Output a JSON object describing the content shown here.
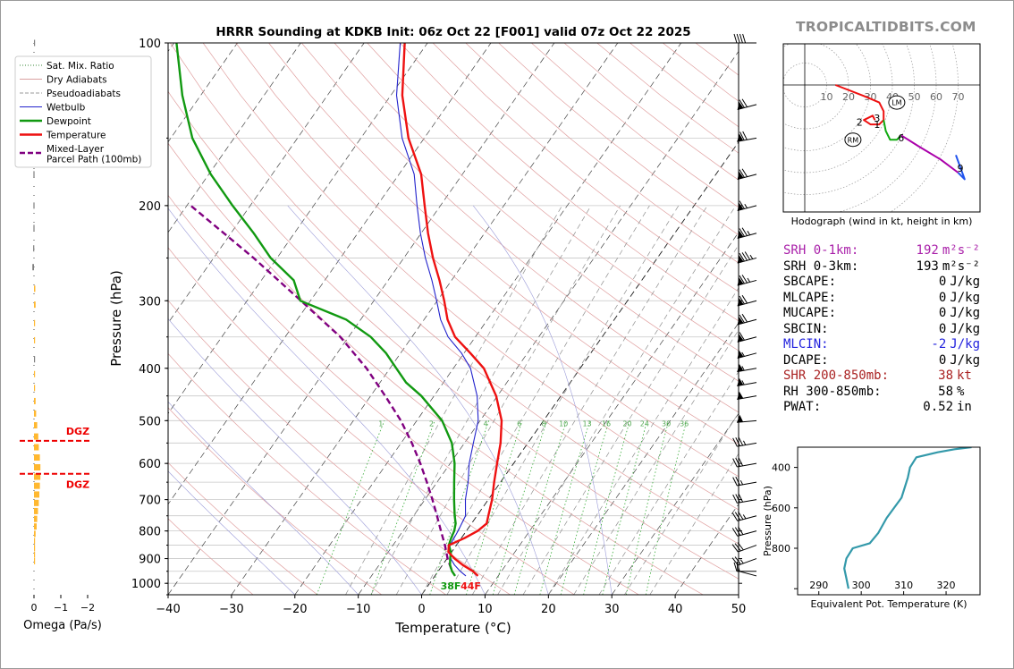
{
  "title": "HRRR Sounding at KDKB Init: 06z Oct 22 [F001] valid 07z Oct 22 2025",
  "brand": "TROPICALTIDBITS.COM",
  "legend": [
    {
      "label": "Sat. Mix. Ratio",
      "color": "#3a8a3a",
      "style": "dotted"
    },
    {
      "label": "Dry Adiabats",
      "color": "#d9a0a0",
      "style": "solid"
    },
    {
      "label": "Pseudoadiabats",
      "color": "#9a9a9a",
      "style": "dashed"
    },
    {
      "label": "Wetbulb",
      "color": "#2222cc",
      "style": "solid"
    },
    {
      "label": "Dewpoint",
      "color": "#119911",
      "style": "thick"
    },
    {
      "label": "Temperature",
      "color": "#ee1111",
      "style": "thick"
    },
    {
      "label": "Mixed-Layer\nParcel Path (100mb)",
      "color": "#800080",
      "style": "thickdash"
    }
  ],
  "chart_data": [
    {
      "type": "line",
      "name": "skewt",
      "xlabel": "Temperature (°C)",
      "ylabel": "Pressure (hPa)",
      "xlim": [
        -40,
        50
      ],
      "ylim": [
        1050,
        100
      ],
      "yscale": "log",
      "x_ticks": [
        -40,
        -30,
        -20,
        -10,
        0,
        10,
        20,
        30,
        40,
        50
      ],
      "x_tick_labels": [
        "−40",
        "−30",
        "−20",
        "−10",
        "0",
        "10",
        "20",
        "30",
        "40",
        "50"
      ],
      "y_ticks": [
        100,
        200,
        300,
        400,
        500,
        600,
        700,
        800,
        900,
        1000
      ],
      "y_tick_labels": [
        "100",
        "200",
        "300",
        "400",
        "500",
        "600",
        "700",
        "800",
        "900",
        "1000"
      ],
      "surface_labels": {
        "dewpoint": "38F",
        "temperature": "44F"
      },
      "mixing_ratio_labels": [
        "1",
        "2",
        "4",
        "6",
        "8",
        "10",
        "13",
        "16",
        "20",
        "24",
        "30",
        "36"
      ],
      "mixing_ratio_values": [
        1,
        2,
        4,
        6,
        8,
        10,
        13,
        16,
        20,
        24,
        30,
        36
      ],
      "colors": {
        "temperature": "#ee1111",
        "dewpoint": "#119911",
        "wetbulb": "#2222cc",
        "parcel": "#800080"
      },
      "series": [
        {
          "name": "Temperature",
          "p": [
            969,
            950,
            925,
            900,
            875,
            850,
            825,
            800,
            775,
            750,
            700,
            650,
            600,
            550,
            500,
            450,
            400,
            375,
            350,
            325,
            300,
            275,
            250,
            225,
            200,
            175,
            150,
            125,
            100
          ],
          "t": [
            6.8,
            5.5,
            3.2,
            1.2,
            -0.5,
            -1.2,
            0.5,
            1.8,
            2.4,
            1.8,
            0.6,
            -1.0,
            -2.6,
            -4.3,
            -6.6,
            -10.2,
            -15.2,
            -19.0,
            -23.2,
            -26.3,
            -28.9,
            -31.9,
            -35.4,
            -38.9,
            -42.5,
            -46.5,
            -52.5,
            -58.2,
            -63.6
          ]
        },
        {
          "name": "Dewpoint",
          "p": [
            969,
            950,
            925,
            900,
            875,
            850,
            825,
            800,
            775,
            750,
            700,
            650,
            600,
            550,
            500,
            450,
            425,
            400,
            375,
            350,
            325,
            300,
            275,
            250,
            225,
            200,
            175,
            150,
            125,
            100
          ],
          "t": [
            3.2,
            2.2,
            1.2,
            0.5,
            -0.1,
            -1.2,
            -1.6,
            -1.9,
            -2.5,
            -3.5,
            -5.4,
            -7.3,
            -9.3,
            -12.0,
            -16.0,
            -22.0,
            -25.9,
            -29.0,
            -32.3,
            -36.5,
            -42.3,
            -51.6,
            -54.9,
            -61.0,
            -66.4,
            -72.8,
            -79.7,
            -86.6,
            -92.9,
            -99.6
          ]
        },
        {
          "name": "Wetbulb",
          "p": [
            969,
            950,
            925,
            900,
            875,
            850,
            800,
            750,
            700,
            650,
            600,
            550,
            500,
            450,
            400,
            375,
            350,
            325,
            300,
            275,
            250,
            225,
            200,
            175,
            150,
            125,
            100
          ],
          "t": [
            4.9,
            3.5,
            1.9,
            0.6,
            -0.3,
            -1.0,
            -1.3,
            -1.8,
            -3.6,
            -5.1,
            -7.0,
            -8.6,
            -10.3,
            -13.2,
            -17.3,
            -20.4,
            -24.3,
            -27.4,
            -30.1,
            -33.1,
            -36.6,
            -40.1,
            -43.7,
            -47.6,
            -53.5,
            -59.1,
            -64.3
          ]
        },
        {
          "name": "Mixed-Layer Parcel Path (100mb)",
          "p": [
            940,
            900,
            850,
            800,
            750,
            700,
            650,
            600,
            550,
            500,
            450,
            400,
            350,
            300,
            250,
            200
          ],
          "t": [
            1.8,
            0.1,
            -1.8,
            -4.0,
            -6.3,
            -8.8,
            -11.6,
            -14.7,
            -18.3,
            -22.5,
            -27.7,
            -33.7,
            -41.3,
            -51.5,
            -63.7,
            -79.4
          ]
        }
      ]
    },
    {
      "type": "line",
      "name": "omega",
      "xlabel": "Omega (Pa/s)",
      "x_ticks": [
        0,
        -1,
        -2
      ],
      "x_tick_labels": [
        "0",
        "−1",
        "−2"
      ],
      "dgz_label": "DGZ",
      "dgz_levels": [
        545,
        627
      ],
      "bars": [
        {
          "p": 100,
          "v": 0.0
        },
        {
          "p": 115,
          "v": 0.0
        },
        {
          "p": 130,
          "v": 0.02
        },
        {
          "p": 145,
          "v": 0.05
        },
        {
          "p": 160,
          "v": -0.02
        },
        {
          "p": 175,
          "v": 0.02
        },
        {
          "p": 200,
          "v": 0.02
        },
        {
          "p": 220,
          "v": 0.02
        },
        {
          "p": 240,
          "v": 0.03
        },
        {
          "p": 260,
          "v": 0.06
        },
        {
          "p": 285,
          "v": -0.05
        },
        {
          "p": 305,
          "v": -0.06
        },
        {
          "p": 330,
          "v": -0.04
        },
        {
          "p": 355,
          "v": -0.02
        },
        {
          "p": 385,
          "v": 0.0
        },
        {
          "p": 410,
          "v": -0.02
        },
        {
          "p": 435,
          "v": -0.03
        },
        {
          "p": 460,
          "v": -0.06
        },
        {
          "p": 485,
          "v": -0.08
        },
        {
          "p": 510,
          "v": -0.12
        },
        {
          "p": 535,
          "v": -0.16
        },
        {
          "p": 560,
          "v": -0.18
        },
        {
          "p": 585,
          "v": -0.22
        },
        {
          "p": 610,
          "v": -0.24
        },
        {
          "p": 635,
          "v": -0.24
        },
        {
          "p": 660,
          "v": -0.22
        },
        {
          "p": 685,
          "v": -0.2
        },
        {
          "p": 710,
          "v": -0.18
        },
        {
          "p": 735,
          "v": -0.15
        },
        {
          "p": 760,
          "v": -0.12
        },
        {
          "p": 785,
          "v": -0.1
        },
        {
          "p": 810,
          "v": -0.06
        },
        {
          "p": 835,
          "v": -0.03
        },
        {
          "p": 860,
          "v": -0.02
        },
        {
          "p": 885,
          "v": -0.01
        },
        {
          "p": 910,
          "v": -0.01
        }
      ],
      "bar_color_up": "#ffb830",
      "bar_color_down": "#7f7f7f"
    },
    {
      "type": "scatter",
      "name": "hodograph",
      "caption": "Hodograph (wind in kt, height in km)",
      "ring_labels": [
        "10",
        "20",
        "30",
        "40",
        "50",
        "60",
        "70"
      ],
      "ring_values": [
        10,
        20,
        30,
        40,
        50,
        60,
        70
      ],
      "height_labels": [
        {
          "text": "1",
          "u": 33,
          "v": -18
        },
        {
          "text": "2",
          "u": 25,
          "v": -17
        },
        {
          "text": "3",
          "u": 33,
          "v": -15
        },
        {
          "text": "6",
          "u": 44,
          "v": -24
        },
        {
          "text": "9",
          "u": 71,
          "v": -38
        }
      ],
      "markers": [
        {
          "text": "LM",
          "u": 42,
          "v": -8
        },
        {
          "text": "RM",
          "u": 22,
          "v": -25
        }
      ],
      "segments": [
        {
          "color": "#ee1111",
          "pts": [
            [
              14,
              0
            ],
            [
              27,
              -5
            ],
            [
              34,
              -8
            ],
            [
              36,
              -12
            ],
            [
              36,
              -16
            ],
            [
              34,
              -18
            ],
            [
              30,
              -18
            ],
            [
              27,
              -16
            ],
            [
              31,
              -14
            ],
            [
              32,
              -16
            ]
          ]
        },
        {
          "color": "#11aa11",
          "pts": [
            [
              36,
              -16
            ],
            [
              37,
              -21
            ],
            [
              39,
              -25
            ],
            [
              42,
              -25
            ],
            [
              44,
              -23
            ]
          ]
        },
        {
          "color": "#aa00aa",
          "pts": [
            [
              44,
              -23
            ],
            [
              52,
              -28
            ],
            [
              62,
              -34
            ],
            [
              70,
              -40
            ]
          ]
        },
        {
          "color": "#2255ee",
          "pts": [
            [
              70,
              -40
            ],
            [
              73,
              -43
            ],
            [
              69,
              -32
            ]
          ]
        }
      ]
    },
    {
      "type": "line",
      "name": "theta_e",
      "xlabel": "Equivalent Pot. Temperature (K)",
      "ylabel": "Pressure (hPa)",
      "x_ticks": [
        290,
        300,
        310,
        320
      ],
      "y_ticks": [
        400,
        600,
        800
      ],
      "color": "#3399aa",
      "pts": [
        [
          297,
          1000
        ],
        [
          296.5,
          950
        ],
        [
          296,
          900
        ],
        [
          296.5,
          850
        ],
        [
          298,
          800
        ],
        [
          302,
          775
        ],
        [
          304,
          725
        ],
        [
          306,
          650
        ],
        [
          309.5,
          550
        ],
        [
          311,
          450
        ],
        [
          311.5,
          400
        ],
        [
          313,
          350
        ],
        [
          318,
          325
        ],
        [
          322,
          310
        ],
        [
          326,
          300
        ]
      ]
    }
  ],
  "stats": [
    {
      "label": "SRH 0-1km:",
      "value": "192",
      "unit": "m²s⁻²",
      "color": "#aa22aa"
    },
    {
      "label": "SRH 0-3km:",
      "value": "193",
      "unit": "m²s⁻²",
      "color": "#000000"
    },
    {
      "label": "SBCAPE:",
      "value": "0",
      "unit": "J/kg",
      "color": "#000000"
    },
    {
      "label": "MLCAPE:",
      "value": "0",
      "unit": "J/kg",
      "color": "#000000"
    },
    {
      "label": "MUCAPE:",
      "value": "0",
      "unit": "J/kg",
      "color": "#000000"
    },
    {
      "label": "SBCIN:",
      "value": "0",
      "unit": "J/kg",
      "color": "#000000"
    },
    {
      "label": "MLCIN:",
      "value": "-2",
      "unit": "J/kg",
      "color": "#2222dd"
    },
    {
      "label": "DCAPE:",
      "value": "0",
      "unit": "J/kg",
      "color": "#000000"
    },
    {
      "label": "SHR 200-850mb:",
      "value": "38",
      "unit": "kt",
      "color": "#aa2222"
    },
    {
      "label": "RH 300-850mb:",
      "value": "58",
      "unit": "%",
      "color": "#000000"
    },
    {
      "label": "PWAT:",
      "value": "0.52",
      "unit": "in",
      "color": "#000000"
    }
  ],
  "wind_barbs": [
    {
      "p": 100,
      "speed": 40,
      "dir": 270
    },
    {
      "p": 130,
      "speed": 70,
      "dir": 255
    },
    {
      "p": 150,
      "speed": 70,
      "dir": 260
    },
    {
      "p": 175,
      "speed": 70,
      "dir": 255
    },
    {
      "p": 200,
      "speed": 65,
      "dir": 255
    },
    {
      "p": 225,
      "speed": 75,
      "dir": 255
    },
    {
      "p": 250,
      "speed": 85,
      "dir": 255
    },
    {
      "p": 275,
      "speed": 75,
      "dir": 255
    },
    {
      "p": 300,
      "speed": 70,
      "dir": 255
    },
    {
      "p": 325,
      "speed": 70,
      "dir": 255
    },
    {
      "p": 350,
      "speed": 60,
      "dir": 255
    },
    {
      "p": 375,
      "speed": 55,
      "dir": 255
    },
    {
      "p": 400,
      "speed": 55,
      "dir": 260
    },
    {
      "p": 425,
      "speed": 55,
      "dir": 260
    },
    {
      "p": 450,
      "speed": 50,
      "dir": 260
    },
    {
      "p": 500,
      "speed": 50,
      "dir": 265
    },
    {
      "p": 550,
      "speed": 35,
      "dir": 260
    },
    {
      "p": 600,
      "speed": 30,
      "dir": 260
    },
    {
      "p": 650,
      "speed": 25,
      "dir": 260
    },
    {
      "p": 700,
      "speed": 30,
      "dir": 260
    },
    {
      "p": 750,
      "speed": 35,
      "dir": 255
    },
    {
      "p": 800,
      "speed": 30,
      "dir": 255
    },
    {
      "p": 850,
      "speed": 30,
      "dir": 250
    },
    {
      "p": 900,
      "speed": 25,
      "dir": 250
    },
    {
      "p": 950,
      "speed": 15,
      "dir": 270
    },
    {
      "p": 969,
      "speed": 10,
      "dir": 285
    }
  ]
}
